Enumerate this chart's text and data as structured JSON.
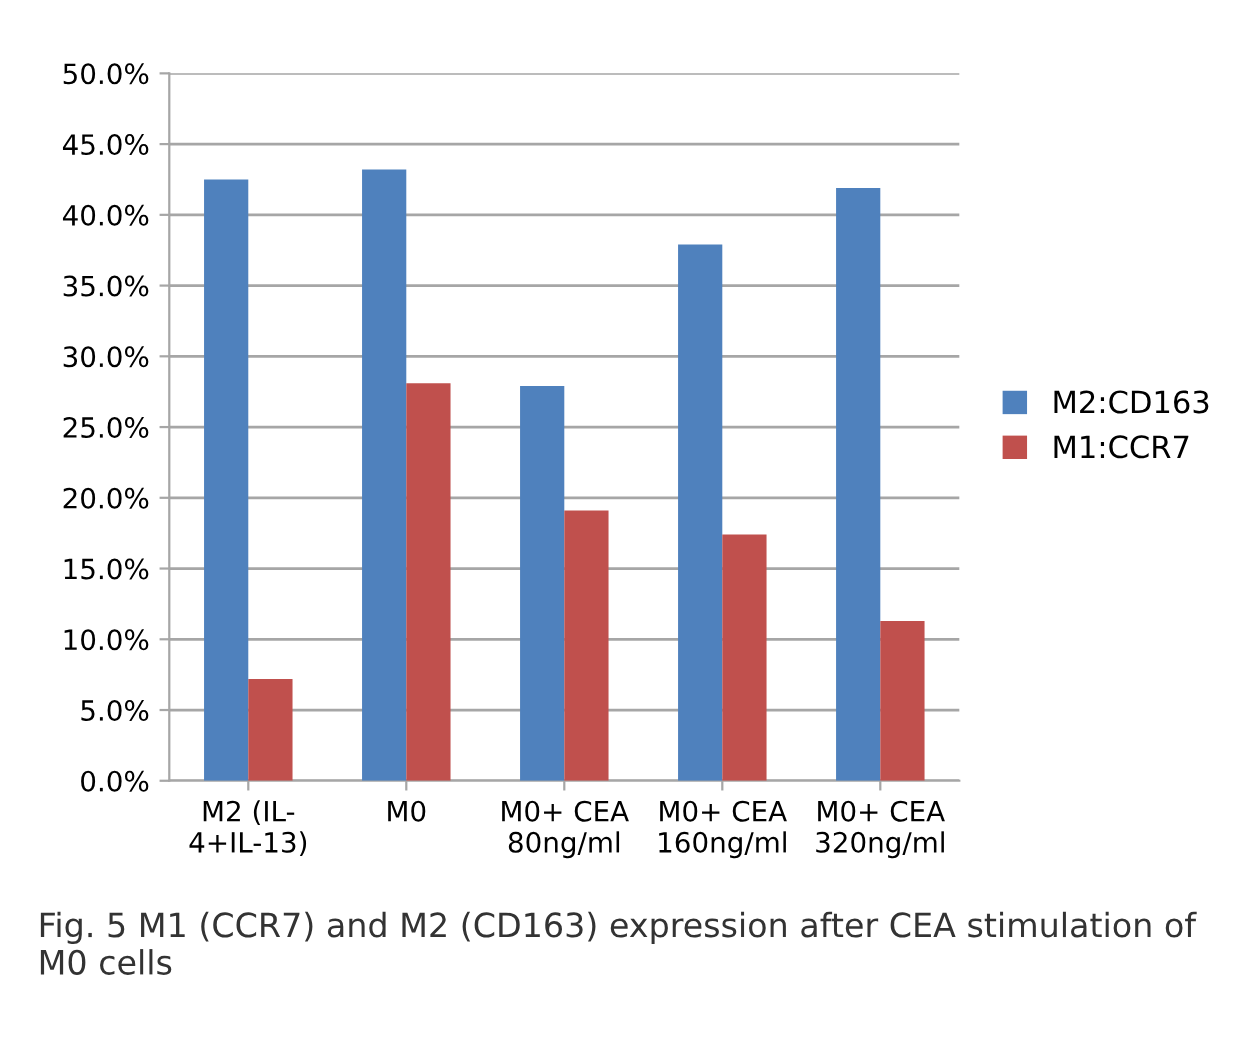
{
  "chart_data": {
    "type": "bar",
    "categories": [
      "M2 (IL-\n4+IL-13)",
      "M0",
      "M0+ CEA\n80ng/ml",
      "M0+ CEA\n160ng/ml",
      "M0+ CEA\n320ng/ml"
    ],
    "series": [
      {
        "name": "M2:CD163",
        "color": "#4f81bd",
        "values": [
          42.5,
          43.2,
          27.9,
          37.9,
          41.9
        ]
      },
      {
        "name": "M1:CCR7",
        "color": "#c0504d",
        "values": [
          7.2,
          28.1,
          19.1,
          17.4,
          11.3
        ]
      }
    ],
    "ylim": [
      0,
      50
    ],
    "yticks": [
      {
        "value": 0,
        "label": "0.0%"
      },
      {
        "value": 5,
        "label": "5.0%"
      },
      {
        "value": 10,
        "label": "10.0%"
      },
      {
        "value": 15,
        "label": "15.0%"
      },
      {
        "value": 20,
        "label": "20.0%"
      },
      {
        "value": 25,
        "label": "25.0%"
      },
      {
        "value": 30,
        "label": "30.0%"
      },
      {
        "value": 35,
        "label": "35.0%"
      },
      {
        "value": 40,
        "label": "40.0%"
      },
      {
        "value": 45,
        "label": "45.0%"
      },
      {
        "value": 50,
        "label": "50.0%"
      }
    ],
    "grid": "y",
    "legend": "right",
    "annotations": [
      "Fig. 5 M1 (CCR7) and M2 (CD163) expression after CEA stimulation of M0 cells"
    ]
  }
}
